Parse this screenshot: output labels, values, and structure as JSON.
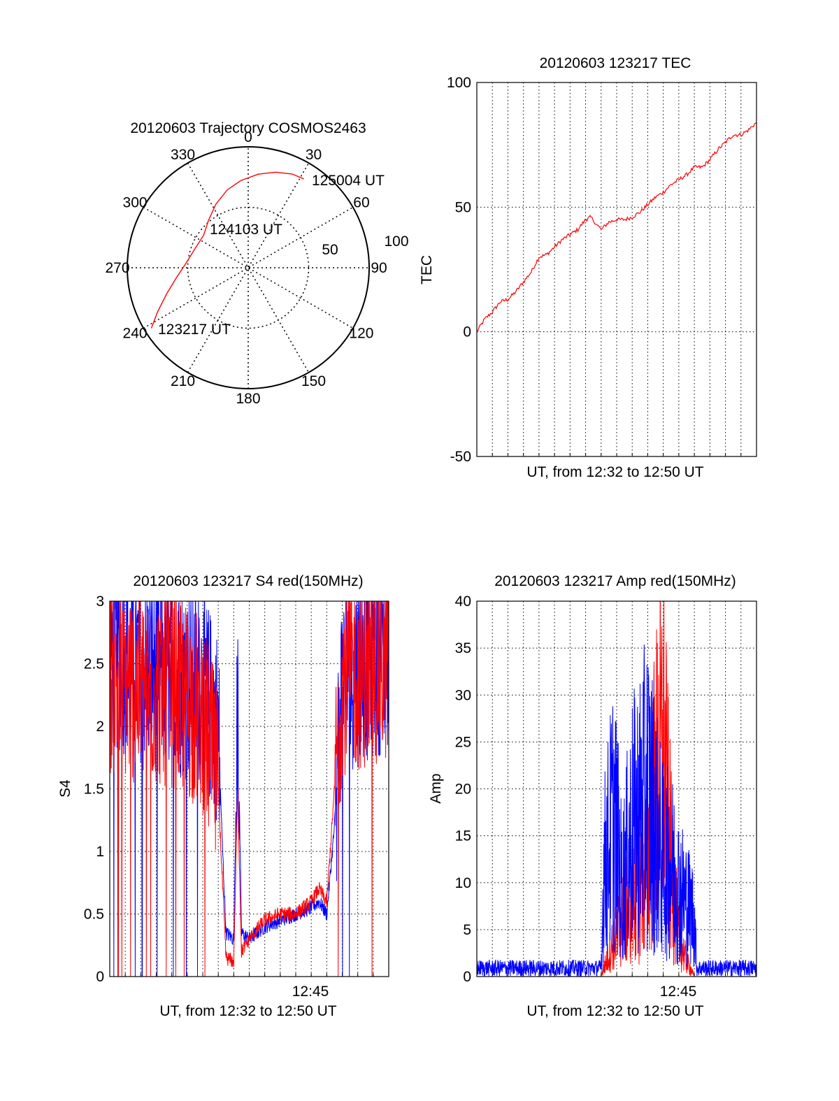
{
  "colors": {
    "red": "#ff0000",
    "blue": "#0000ff",
    "axis": "#000000",
    "grid": "#000000",
    "background": "#ffffff"
  },
  "chart_data": [
    {
      "type": "polar",
      "title": "20120603 Trajectory COSMOS2463",
      "azimuth_labels": [
        "0",
        "30",
        "60",
        "90",
        "120",
        "150",
        "180",
        "210",
        "240",
        "270",
        "300",
        "330"
      ],
      "radial_labels": [
        "50",
        "100"
      ],
      "radial_values": [
        50,
        100
      ],
      "grid": true,
      "series": [
        {
          "color": "red",
          "points": [
            {
              "az": 238,
              "el": 5
            },
            {
              "az": 244,
              "el": 15
            },
            {
              "az": 252,
              "el": 26
            },
            {
              "az": 262,
              "el": 36
            },
            {
              "az": 275,
              "el": 44
            },
            {
              "az": 290,
              "el": 48
            },
            {
              "az": 306,
              "el": 49
            },
            {
              "az": 320,
              "el": 44
            },
            {
              "az": 333,
              "el": 37
            },
            {
              "az": 345,
              "el": 30
            },
            {
              "az": 355,
              "el": 25
            },
            {
              "az": 6,
              "el": 20
            },
            {
              "az": 16,
              "el": 16
            },
            {
              "az": 25,
              "el": 13
            },
            {
              "az": 32,
              "el": 12
            }
          ]
        }
      ],
      "annotations": [
        {
          "text": "125004 UT",
          "az": 32,
          "el": 12
        },
        {
          "text": "124103 UT",
          "az": 3,
          "el": 68
        },
        {
          "text": "123217 UT",
          "az": 238,
          "el": 6
        }
      ]
    },
    {
      "type": "line",
      "title": "20120603 123217 TEC",
      "xlabel": "UT, from 12:32 to 12:50 UT",
      "ylabel": "TEC",
      "xlim": [
        "12:32",
        "12:50"
      ],
      "ylim": [
        -50,
        100
      ],
      "yticks": [
        "100",
        "50",
        "0",
        "-50"
      ],
      "ytick_values": [
        100,
        50,
        0,
        -50
      ],
      "grid": true,
      "series": [
        {
          "color": "red",
          "points": [
            [
              "12:32:00",
              0
            ],
            [
              "12:32:30",
              5
            ],
            [
              "12:33:00",
              8
            ],
            [
              "12:33:30",
              12
            ],
            [
              "12:34:00",
              13
            ],
            [
              "12:34:30",
              16
            ],
            [
              "12:35:00",
              20
            ],
            [
              "12:35:30",
              24
            ],
            [
              "12:36:00",
              30
            ],
            [
              "12:36:30",
              31
            ],
            [
              "12:37:00",
              34
            ],
            [
              "12:37:30",
              37
            ],
            [
              "12:38:00",
              39
            ],
            [
              "12:38:30",
              41
            ],
            [
              "12:39:00",
              45
            ],
            [
              "12:39:20",
              46
            ],
            [
              "12:40:00",
              41
            ],
            [
              "12:40:30",
              44
            ],
            [
              "12:41:00",
              45
            ],
            [
              "12:41:30",
              45
            ],
            [
              "12:42:00",
              46
            ],
            [
              "12:42:30",
              48
            ],
            [
              "12:43:00",
              51
            ],
            [
              "12:43:30",
              54
            ],
            [
              "12:44:00",
              56
            ],
            [
              "12:44:30",
              59
            ],
            [
              "12:45:00",
              61
            ],
            [
              "12:45:30",
              63
            ],
            [
              "12:46:00",
              66
            ],
            [
              "12:46:30",
              66
            ],
            [
              "12:47:00",
              69
            ],
            [
              "12:47:30",
              73
            ],
            [
              "12:48:00",
              76
            ],
            [
              "12:48:30",
              79
            ],
            [
              "12:49:00",
              79
            ],
            [
              "12:49:30",
              81
            ],
            [
              "12:50:00",
              84
            ]
          ]
        }
      ]
    },
    {
      "type": "line",
      "title": "20120603 123217 S4 red(150MHz)",
      "xlabel": "UT, from 12:32 to 12:50 UT",
      "ylabel": "S4",
      "xlim": [
        "12:32",
        "12:50"
      ],
      "xticks": [
        "12:45"
      ],
      "ylim": [
        0,
        3
      ],
      "yticks": [
        "0",
        "0.5",
        "1",
        "1.5",
        "2",
        "2.5",
        "3"
      ],
      "ytick_values": [
        0,
        0.5,
        1,
        1.5,
        2,
        2.5,
        3
      ],
      "grid": true,
      "series": [
        {
          "color": "blue",
          "profile": [
            [
              "12:32:00",
              2.6
            ],
            [
              "12:34:00",
              2.5
            ],
            [
              "12:36:00",
              2.4
            ],
            [
              "12:38:00",
              2.3
            ],
            [
              "12:39:00",
              2.0
            ],
            [
              "12:39:15",
              1.1
            ],
            [
              "12:39:30",
              0.35
            ],
            [
              "12:40:00",
              0.3
            ],
            [
              "12:40:15",
              2.2
            ],
            [
              "12:40:30",
              0.35
            ],
            [
              "12:41:00",
              0.3
            ],
            [
              "12:42:00",
              0.4
            ],
            [
              "12:43:00",
              0.45
            ],
            [
              "12:44:00",
              0.5
            ],
            [
              "12:45:00",
              0.55
            ],
            [
              "12:45:30",
              0.6
            ],
            [
              "12:46:00",
              0.5
            ],
            [
              "12:46:30",
              1.2
            ],
            [
              "12:47:00",
              2.4
            ],
            [
              "12:50:00",
              2.6
            ]
          ]
        },
        {
          "color": "red",
          "profile": [
            [
              "12:32:00",
              2.4
            ],
            [
              "12:34:00",
              2.3
            ],
            [
              "12:36:00",
              2.3
            ],
            [
              "12:38:00",
              2.1
            ],
            [
              "12:39:00",
              1.5
            ],
            [
              "12:39:15",
              0.8
            ],
            [
              "12:39:30",
              0.15
            ],
            [
              "12:40:00",
              0.12
            ],
            [
              "12:40:15",
              1.5
            ],
            [
              "12:40:30",
              0.2
            ],
            [
              "12:41:00",
              0.3
            ],
            [
              "12:42:00",
              0.45
            ],
            [
              "12:43:00",
              0.5
            ],
            [
              "12:44:00",
              0.5
            ],
            [
              "12:45:00",
              0.6
            ],
            [
              "12:45:30",
              0.7
            ],
            [
              "12:46:00",
              0.6
            ],
            [
              "12:46:30",
              1.5
            ],
            [
              "12:47:00",
              2.4
            ],
            [
              "12:50:00",
              2.5
            ]
          ]
        }
      ]
    },
    {
      "type": "line",
      "title": "20120603 123217 Amp red(150MHz)",
      "xlabel": "UT, from 12:32 to 12:50 UT",
      "ylabel": "Amp",
      "xlim": [
        "12:32",
        "12:50"
      ],
      "xticks": [
        "12:45"
      ],
      "ylim": [
        0,
        40
      ],
      "yticks": [
        "0",
        "5",
        "10",
        "15",
        "20",
        "25",
        "30",
        "35",
        "40"
      ],
      "ytick_values": [
        0,
        5,
        10,
        15,
        20,
        25,
        30,
        35,
        40
      ],
      "grid": true,
      "series": [
        {
          "color": "blue",
          "profile": [
            [
              "12:32:00",
              1
            ],
            [
              "12:40:00",
              1
            ],
            [
              "12:40:10",
              14
            ],
            [
              "12:40:50",
              22
            ],
            [
              "12:41:20",
              12
            ],
            [
              "12:42:00",
              20
            ],
            [
              "12:42:30",
              22
            ],
            [
              "12:43:00",
              25
            ],
            [
              "12:43:30",
              20
            ],
            [
              "12:44:00",
              15
            ],
            [
              "12:44:30",
              15
            ],
            [
              "12:45:00",
              12
            ],
            [
              "12:45:30",
              10
            ],
            [
              "12:46:00",
              8
            ],
            [
              "12:46:10",
              1
            ],
            [
              "12:50:00",
              1
            ]
          ]
        },
        {
          "color": "red",
          "profile": [
            [
              "12:32:00",
              0
            ],
            [
              "12:40:00",
              0
            ],
            [
              "12:41:00",
              6
            ],
            [
              "12:42:00",
              10
            ],
            [
              "12:43:00",
              15
            ],
            [
              "12:43:30",
              25
            ],
            [
              "12:44:00",
              30
            ],
            [
              "12:44:30",
              15
            ],
            [
              "12:45:00",
              5
            ],
            [
              "12:45:30",
              2
            ],
            [
              "12:46:00",
              0
            ],
            [
              "12:50:00",
              0
            ]
          ]
        }
      ]
    }
  ]
}
